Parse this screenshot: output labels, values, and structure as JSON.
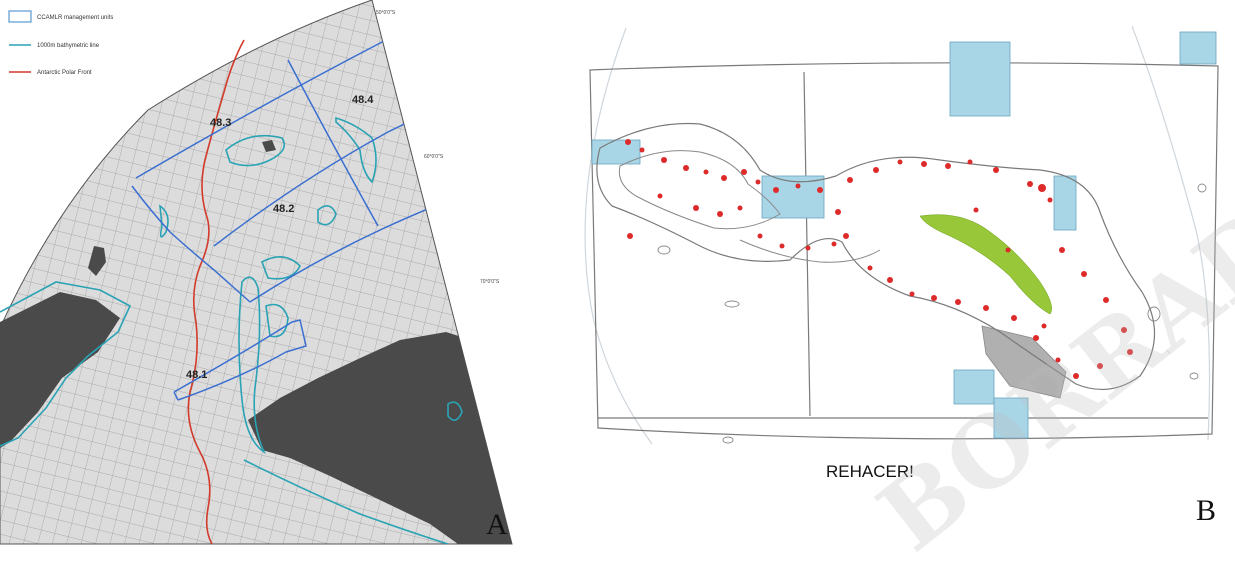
{
  "panel_a": {
    "legend": [
      {
        "label": "CCAMLR management units",
        "swatch": "box",
        "color": "#5a9ad0"
      },
      {
        "label": "1000m bathymetric line",
        "swatch": "line",
        "color": "#2aa3b5"
      },
      {
        "label": "Antarctic Polar Front",
        "swatch": "line",
        "color": "#d23a2a"
      }
    ],
    "coordinate_labels": [
      "50°0'0\"S",
      "60°0'0\"S",
      "70°0'0\"S"
    ],
    "subarea_labels": [
      "48.3",
      "48.4",
      "48.2",
      "48.1"
    ],
    "colors": {
      "grid": "#a0a0a0",
      "sea": "#dcdcdc",
      "land": "#4a4a4a",
      "units": "#3a6fd0",
      "bathy": "#2aa3b5",
      "front": "#d23a2a"
    }
  },
  "panel_b": {
    "colors": {
      "points": "#dd2a2a",
      "blue_boxes": "#a8d6e6",
      "green_patch": "#98c83a",
      "grey_box": "#b0b0b0",
      "outline": "#7a7a7a"
    }
  },
  "annotations": {
    "panel_a_letter": "A",
    "panel_b_letter": "B",
    "note": "REHACER!",
    "watermark": "BORRADOR"
  }
}
